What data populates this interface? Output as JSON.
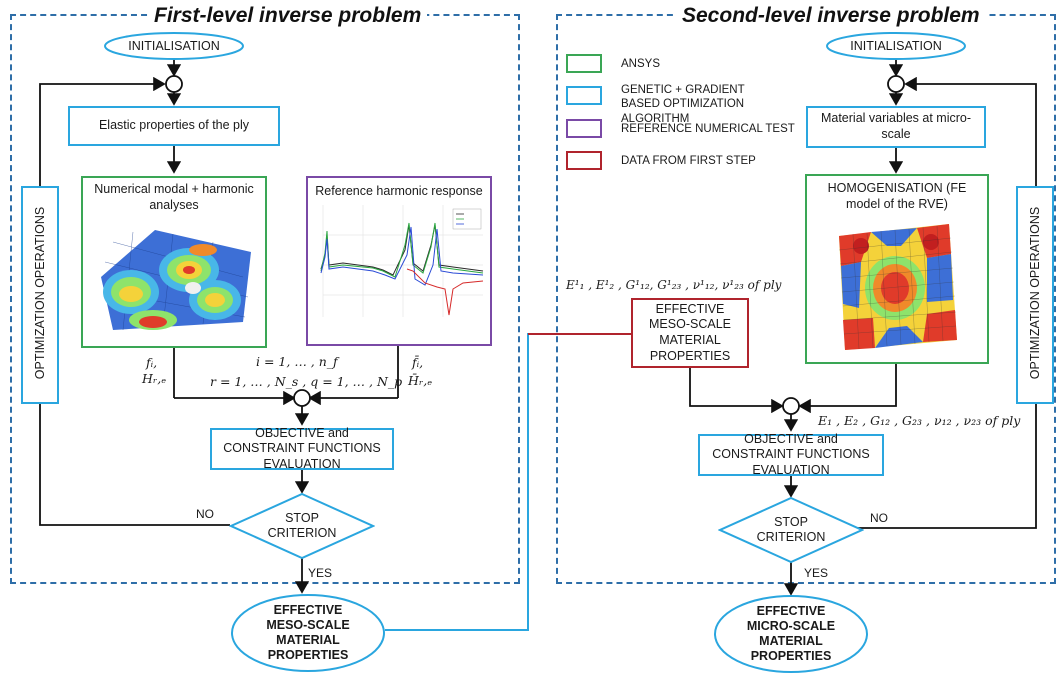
{
  "left": {
    "title": "First-level inverse problem",
    "init": "INITIALISATION",
    "elastic": "Elastic properties of the ply",
    "numerical": "Numerical modal + harmonic analyses",
    "reference": "Reference harmonic response",
    "optimization": "OPTIMIZATION OPERATIONS",
    "f_label": "fᵢ,",
    "h_label": "Hᵣ,ₑ",
    "fbar_label": "f̄ᵢ,",
    "hbar_label": "H̄ᵣ,ₑ",
    "index_i": "i = 1, … , n_f",
    "index_rq": "r = 1, … , N_s ,  q = 1, … , N_p",
    "objective": "OBJECTIVE and CONSTRAINT FUNCTIONS EVALUATION",
    "stop": "STOP CRITERION",
    "no": "NO",
    "yes": "YES",
    "result": "EFFECTIVE MESO-SCALE MATERIAL PROPERTIES"
  },
  "right": {
    "title": "Second-level inverse problem",
    "init": "INITIALISATION",
    "material": "Material variables at micro-scale",
    "homog": "HOMOGENISATION (FE model of the RVE)",
    "optimization": "OPTIMIZATION OPERATIONS",
    "effective_meso": "EFFECTIVE MESO-SCALE MATERIAL PROPERTIES",
    "meso_vars": "E¹₁ , E¹₂ , G¹₁₂, G¹₂₃ , ν¹₁₂, ν¹₂₃ of ply",
    "micro_vars": "E₁ , E₂ , G₁₂ , G₂₃ , ν₁₂ , ν₂₃ of ply",
    "objective": "OBJECTIVE and CONSTRAINT FUNCTIONS EVALUATION",
    "stop": "STOP CRITERION",
    "no": "NO",
    "yes": "YES",
    "result": "EFFECTIVE MICRO-SCALE MATERIAL PROPERTIES"
  },
  "legend": [
    {
      "label": "ANSYS",
      "color": "#3aa655"
    },
    {
      "label": "GENETIC + GRADIENT BASED OPTIMIZATION ALGORITHM",
      "color": "#2aa6df"
    },
    {
      "label": "REFERENCE NUMERICAL TEST",
      "color": "#7a4aa6"
    },
    {
      "label": "DATA FROM FIRST STEP",
      "color": "#b0242d"
    }
  ],
  "colors": {
    "panel_border": "#2e6ea8",
    "blue": "#2aa6df",
    "green": "#3aa655",
    "purple": "#7a4aa6",
    "red": "#b0242d",
    "connector": "#2aa6df",
    "red_connector": "#b0242d"
  }
}
